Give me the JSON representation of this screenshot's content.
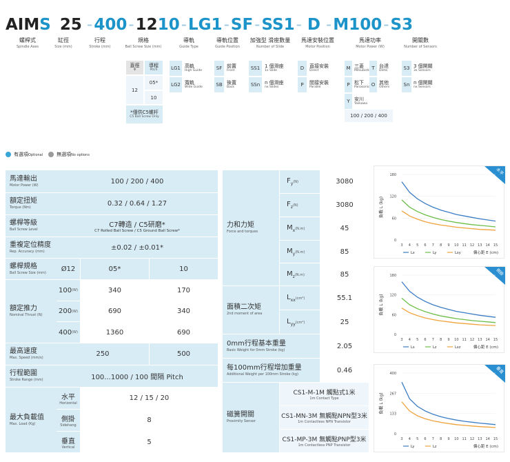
{
  "header": {
    "code": [
      "AIM",
      "S",
      "25",
      "-",
      "400",
      "-",
      "12",
      "10",
      "-",
      "LG1",
      "-",
      "SF",
      "-",
      "SS1",
      "-",
      "D",
      "-",
      "M100",
      "-",
      "S3"
    ],
    "captions": [
      {
        "zh": "螺桿式",
        "en": "Spindle Axes"
      },
      {
        "zh": "缸徑",
        "en": "Size (mm)"
      },
      {
        "zh": "行程",
        "en": "Stroke (mm)"
      },
      {
        "zh": "規格",
        "en": "Ball Screw Size (mm)"
      },
      {
        "zh": "導軌",
        "en": "Guide Type"
      },
      {
        "zh": "導軌位置",
        "en": "Guide Position"
      },
      {
        "zh": "加強型 滑座數量",
        "en": "Number of Slide"
      },
      {
        "zh": "馬達安裝位置",
        "en": "Motor Position"
      },
      {
        "zh": "馬達功率",
        "en": "Motor Power (W)"
      },
      {
        "zh": "開關數",
        "en": "Number of Sensors"
      }
    ]
  },
  "options": {
    "spec": {
      "h1": "直徑",
      "h1s": "Φ",
      "h2": "導程",
      "h2s": "Pitch",
      "d": "12",
      "p1": "05*",
      "p2": "10",
      "note": "*僅供C5螺杆",
      "note_en": "C5 Ball Screw Only"
    },
    "guide": [
      {
        "k": "LG1",
        "zh": "高軌",
        "en": "High Guide"
      },
      {
        "k": "LG2",
        "zh": "寬軌",
        "en": "Wide Guide"
      }
    ],
    "pos": [
      {
        "k": "SF",
        "zh": "前置",
        "en": "Front"
      },
      {
        "k": "SB",
        "zh": "後置",
        "en": "Back"
      }
    ],
    "slide": [
      {
        "k": "SS1",
        "zh": "1 個滑座",
        "en": "1x Slide"
      },
      {
        "k": "SSn",
        "zh": "n 個滑座",
        "en": "nx Slides"
      }
    ],
    "motor_pos": [
      {
        "k": "D",
        "zh": "直接安裝",
        "en": "Direct"
      },
      {
        "k": "P",
        "zh": "間接安裝",
        "en": "Parallel"
      }
    ],
    "motor": [
      {
        "k": "M",
        "zh": "三菱",
        "en": "Mitsubishi"
      },
      {
        "k": "T",
        "zh": "台達",
        "en": "Delta"
      },
      {
        "k": "P",
        "zh": "松下",
        "en": "Panasonic"
      },
      {
        "k": "O",
        "zh": "其他",
        "en": "Others"
      },
      {
        "k": "Y",
        "zh": "安川",
        "en": "Yaskawa"
      }
    ],
    "motor_power": "100 / 200 / 400",
    "sensors": [
      {
        "k": "S3",
        "zh": "3 個開關",
        "en": "3x Sensors"
      },
      {
        "k": "Sn",
        "zh": "n 個開關",
        "en": "nx Sensors"
      }
    ]
  },
  "legend": {
    "opt_zh": "有選項",
    "opt_en": "Optional",
    "none_zh": "無選項",
    "none_en": "No options",
    "opt_color": "#3aa6d6",
    "none_color": "#9a9a9a"
  },
  "left_table": {
    "motor_power": {
      "zh": "馬達輸出",
      "en": "Motor Power (W)",
      "val": "100 / 200 / 400"
    },
    "torque": {
      "zh": "額定扭矩",
      "en": "Torque (Nm)",
      "val": "0.32 / 0.64 / 1.27"
    },
    "level": {
      "zh": "螺桿等級",
      "en": "Ball Screw Level",
      "val1": "C7轉造 / C5研磨*",
      "val2": "C7 Rolled Ball Screw / C5 Ground Ball Screw*"
    },
    "accuracy": {
      "zh": "重複定位精度",
      "en": "Rep. Accuracy (mm)",
      "val": "±0.02 / ±0.01*"
    },
    "size": {
      "zh": "螺桿規格",
      "en": "Ball Screw Size (mm)",
      "d": "Ø12",
      "p1": "05*",
      "p2": "10"
    },
    "thrust": {
      "zh": "額定推力",
      "en": "Nominal Thrust (N)",
      "rows": [
        {
          "w": "100",
          "u": "(W)",
          "a": "340",
          "b": "170"
        },
        {
          "w": "200",
          "u": "(W)",
          "a": "690",
          "b": "340"
        },
        {
          "w": "400",
          "u": "(W)",
          "a": "1360",
          "b": "690"
        }
      ]
    },
    "speed": {
      "zh": "最高速度",
      "en": "Max. Speed (mm/s)",
      "a": "250",
      "b": "500"
    },
    "stroke": {
      "zh": "行程範圍",
      "en": "Stroke Range (mm)",
      "val": "100...1000 / 100 間隔 Pitch"
    },
    "load": {
      "zh": "最大負載值",
      "en": "Max. Load (Kg)",
      "rows": [
        {
          "zh": "水平",
          "en": "Horizontal",
          "v": "12 / 15 / 20"
        },
        {
          "zh": "側掛",
          "en": "Sidehang",
          "v": "8"
        },
        {
          "zh": "垂直",
          "en": "Vertical",
          "v": "5"
        }
      ]
    }
  },
  "mid_table": {
    "force": {
      "zh": "力和力矩",
      "en": "Force and torques",
      "rows": [
        {
          "k": "F",
          "s": "y",
          "u": "(N)",
          "v": "3080"
        },
        {
          "k": "F",
          "s": "z",
          "u": "(N)",
          "v": "3080"
        },
        {
          "k": "M",
          "s": "x",
          "u": "(N.m)",
          "v": "45"
        },
        {
          "k": "M",
          "s": "y",
          "u": "(N.m)",
          "v": "85"
        },
        {
          "k": "M",
          "s": "z",
          "u": "(N.m)",
          "v": "85"
        }
      ]
    },
    "area": {
      "zh": "面積二次矩",
      "en": "2nd moment of area",
      "rows": [
        {
          "k": "L",
          "s": "xx",
          "u": "(cm⁴)",
          "v": "55.1"
        },
        {
          "k": "L",
          "s": "yy",
          "u": "(cm⁴)",
          "v": "25"
        }
      ]
    },
    "weight": {
      "zh": "0mm行程基本重量",
      "en": "Basic Weight for 0mm Stroke (kg)",
      "v": "2.05"
    },
    "weight100": {
      "zh": "每100mm行程增加重量",
      "en": "Additional Weight per 100mm Stroke (kg)",
      "v": "0.46"
    },
    "sensor": {
      "zh": "磁簧開關",
      "en": "Proximity Sensor",
      "rows": [
        {
          "zh": "CS1-M-1M 觸點式1米",
          "en": "1m Contact Type"
        },
        {
          "zh": "CS1-MN-3M 無觸點NPN型3米",
          "en": "1m Contactless NPN Transistor"
        },
        {
          "zh": "CS1-MP-3M 無觸點PNP型3米",
          "en": "1m Contactless PNP Transistor"
        }
      ]
    }
  },
  "chart_data": [
    {
      "type": "line",
      "badge": "水平",
      "badge_en": "Horizontal",
      "ylabel": "負載 L (kg)",
      "xlabel": "偏心距 E (cm)",
      "yticks": [
        0,
        60,
        120,
        180
      ],
      "ylim": [
        0,
        180
      ],
      "x": [
        3,
        4,
        5,
        6,
        7,
        8,
        9,
        10,
        11,
        12,
        13,
        14,
        15
      ],
      "series": [
        {
          "name": "Lx",
          "color": "#3a7cc4",
          "values": [
            160,
            131,
            113,
            100,
            90,
            82,
            76,
            70,
            66,
            62,
            58,
            55,
            52
          ]
        },
        {
          "name": "Ly",
          "color": "#6cbd45",
          "values": [
            110,
            90,
            78,
            69,
            62,
            56,
            52,
            48,
            45,
            42,
            40,
            38,
            36
          ]
        },
        {
          "name": "Lxy",
          "color": "#f0a23a",
          "values": [
            80,
            66,
            57,
            50,
            45,
            41,
            38,
            35,
            33,
            31,
            29,
            28,
            27
          ]
        }
      ]
    },
    {
      "type": "line",
      "badge": "側掛",
      "badge_en": "Sidehang",
      "ylabel": "負載 L (kg)",
      "xlabel": "偏心距 E (cm)",
      "yticks": [
        0,
        60,
        120,
        180
      ],
      "ylim": [
        0,
        180
      ],
      "x": [
        3,
        4,
        5,
        6,
        7,
        8,
        9,
        10,
        11,
        12,
        13,
        14,
        15
      ],
      "series": [
        {
          "name": "Lx",
          "color": "#3a7cc4",
          "values": [
            160,
            131,
            113,
            100,
            90,
            82,
            76,
            70,
            66,
            62,
            58,
            55,
            52
          ]
        },
        {
          "name": "Lz",
          "color": "#6cbd45",
          "values": [
            110,
            90,
            78,
            69,
            62,
            56,
            52,
            48,
            45,
            42,
            40,
            38,
            36
          ]
        },
        {
          "name": "Lxz",
          "color": "#f0a23a",
          "values": [
            80,
            66,
            57,
            50,
            45,
            41,
            38,
            35,
            33,
            31,
            29,
            28,
            27
          ]
        }
      ]
    },
    {
      "type": "line",
      "badge": "垂直",
      "badge_en": "Vertical",
      "ylabel": "負載 L (kg)",
      "xlabel": "偏心距 E (cm)",
      "yticks": [
        0,
        133,
        267,
        400
      ],
      "ylim": [
        0,
        400
      ],
      "x": [
        3,
        4,
        5,
        6,
        7,
        8,
        9,
        10,
        11,
        12,
        13,
        14,
        15
      ],
      "series": [
        {
          "name": "Ly",
          "color": "#3a7cc4",
          "values": [
            340,
            230,
            180,
            150,
            128,
            112,
            100,
            90,
            82,
            76,
            70,
            65,
            60
          ]
        },
        {
          "name": "Lz",
          "color": "#f0a23a",
          "values": [
            210,
            150,
            118,
            98,
            85,
            75,
            67,
            60,
            55,
            51,
            47,
            44,
            41
          ]
        }
      ]
    }
  ]
}
